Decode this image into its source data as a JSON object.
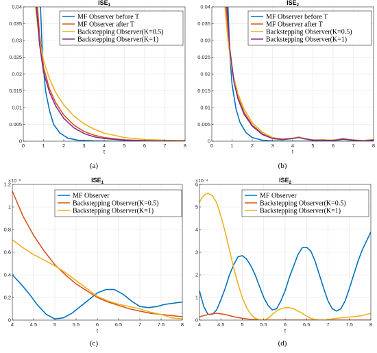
{
  "chart_data": [
    {
      "type": "line",
      "title": "ISE",
      "title_sub": "1",
      "xlabel": "t",
      "ylabel": "",
      "xlim": [
        0,
        8
      ],
      "ylim": [
        0,
        0.04
      ],
      "x_ticks": [
        0,
        1,
        2,
        3,
        4,
        5,
        6,
        7,
        8
      ],
      "x_tick_labels": [
        "0",
        "1",
        "2",
        "3",
        "4",
        "5",
        "6",
        "7",
        "8"
      ],
      "y_ticks": [
        0,
        0.005,
        0.01,
        0.015,
        0.02,
        0.025,
        0.03,
        0.035,
        0.04
      ],
      "y_tick_labels": [
        "0",
        "0.005",
        "0.01",
        "0.015",
        "0.02",
        "0.025",
        "0.03",
        "0.035",
        "0.04"
      ],
      "y_exponent": "",
      "grid": true,
      "legend_position": "top-right",
      "caption": "(a)",
      "series": [
        {
          "name": "MF Observer before T",
          "color": "#0072BD",
          "x": [
            0.85,
            0.95,
            1.1,
            1.3,
            1.5,
            1.8,
            2.2,
            2.7,
            3.5,
            4.5,
            8
          ],
          "y": [
            0.04,
            0.025,
            0.015,
            0.009,
            0.005,
            0.0025,
            0.0009,
            0.0003,
            0.0001,
            0,
            0
          ]
        },
        {
          "name": "MF Observer after T",
          "color": "#D95319",
          "x": [
            0.7,
            0.8,
            1.0,
            1.3,
            1.6,
            2.0,
            2.5,
            3.0,
            3.5,
            4.0,
            5.0,
            6.0,
            8.0
          ],
          "y": [
            0.04,
            0.032,
            0.022,
            0.0155,
            0.0115,
            0.0078,
            0.0048,
            0.0029,
            0.0018,
            0.0011,
            0.0004,
            0.0002,
            0.0001
          ]
        },
        {
          "name": "Backstepping Observer(K=0.5)",
          "color": "#EDB120",
          "x": [
            0.6,
            0.8,
            1.0,
            1.3,
            1.6,
            2.0,
            2.5,
            3.0,
            3.5,
            4.0,
            5.0,
            6.0,
            7.0,
            8.0
          ],
          "y": [
            0.04,
            0.03,
            0.024,
            0.0185,
            0.0145,
            0.0108,
            0.0075,
            0.0052,
            0.0036,
            0.0024,
            0.0011,
            0.0005,
            0.0003,
            0.0002
          ]
        },
        {
          "name": "Backstepping Observer(K=1)",
          "color": "#7E2F8E",
          "x": [
            0.65,
            0.8,
            1.0,
            1.3,
            1.6,
            2.0,
            2.5,
            3.0,
            3.5,
            4.0,
            5.0,
            6.0,
            8.0
          ],
          "y": [
            0.04,
            0.029,
            0.0205,
            0.0145,
            0.0105,
            0.0068,
            0.004,
            0.0023,
            0.0013,
            0.0008,
            0.0003,
            0.0001,
            5e-05
          ]
        }
      ]
    },
    {
      "type": "line",
      "title": "ISE",
      "title_sub": "2",
      "xlabel": "t",
      "ylabel": "",
      "xlim": [
        0,
        8
      ],
      "ylim": [
        0,
        0.04
      ],
      "x_ticks": [
        0,
        1,
        2,
        3,
        4,
        5,
        6,
        7,
        8
      ],
      "x_tick_labels": [
        "0",
        "1",
        "2",
        "3",
        "4",
        "5",
        "6",
        "7",
        "8"
      ],
      "y_ticks": [
        0,
        0.005,
        0.01,
        0.015,
        0.02,
        0.025,
        0.03,
        0.035,
        0.04
      ],
      "y_tick_labels": [
        "0",
        "0.005",
        "0.01",
        "0.015",
        "0.02",
        "0.025",
        "0.03",
        "0.035",
        "0.04"
      ],
      "y_exponent": "",
      "grid": true,
      "legend_position": "top-right",
      "caption": "(b)",
      "series": [
        {
          "name": "MF Observer before T",
          "color": "#0072BD",
          "x": [
            0.8,
            0.9,
            1.0,
            1.2,
            1.4,
            1.7,
            2.0,
            2.5,
            3.0,
            4.0,
            8.0
          ],
          "y": [
            0.04,
            0.025,
            0.017,
            0.0095,
            0.0055,
            0.0025,
            0.0011,
            0.0003,
            0.0001,
            0,
            0
          ]
        },
        {
          "name": "MF Observer after T",
          "color": "#D95319",
          "x": [
            0.7,
            0.9,
            1.1,
            1.3,
            1.6,
            2.0,
            2.5,
            3.0,
            3.5,
            4.0,
            4.3,
            4.6,
            5.0,
            5.5,
            6.0,
            6.5,
            7.0,
            7.5,
            8.0
          ],
          "y": [
            0.04,
            0.026,
            0.018,
            0.013,
            0.0085,
            0.0048,
            0.0022,
            0.0008,
            0.0005,
            0.0008,
            0.0012,
            0.0007,
            0.0003,
            0.0004,
            0.0003,
            0.0008,
            0.0003,
            0.0002,
            0.0005
          ]
        },
        {
          "name": "Backstepping Observer(K=0.5)",
          "color": "#EDB120",
          "x": [
            0.65,
            0.8,
            1.0,
            1.3,
            1.6,
            2.0,
            2.5,
            3.0,
            3.5,
            4.0,
            4.3,
            4.6,
            5.0,
            5.5,
            6.0,
            6.5,
            7.0,
            7.5,
            8.0
          ],
          "y": [
            0.04,
            0.03,
            0.021,
            0.014,
            0.0095,
            0.0055,
            0.0027,
            0.0011,
            0.0007,
            0.0009,
            0.0013,
            0.0008,
            0.0004,
            0.0004,
            0.0003,
            0.0007,
            0.0004,
            0.0002,
            0.0004
          ]
        },
        {
          "name": "Backstepping Observer(K=1)",
          "color": "#7E2F8E",
          "x": [
            0.75,
            0.9,
            1.1,
            1.3,
            1.6,
            2.0,
            2.5,
            3.0,
            3.5,
            4.0,
            4.3,
            4.6,
            5.0,
            5.5,
            6.0,
            6.5,
            7.0,
            7.5,
            8.0
          ],
          "y": [
            0.04,
            0.027,
            0.0175,
            0.0125,
            0.008,
            0.0045,
            0.002,
            0.0008,
            0.0005,
            0.0008,
            0.0011,
            0.0007,
            0.0003,
            0.0003,
            0.0002,
            0.0006,
            0.0003,
            0.0001,
            0.0003
          ]
        }
      ]
    },
    {
      "type": "line",
      "title": "ISE",
      "title_sub": "1",
      "xlabel": "t",
      "ylabel": "",
      "xlim": [
        4,
        8
      ],
      "ylim": [
        0,
        0.0012
      ],
      "x_ticks": [
        4,
        4.5,
        5,
        5.5,
        6,
        6.5,
        7,
        7.5,
        8
      ],
      "x_tick_labels": [
        "4",
        "4.5",
        "5",
        "5.5",
        "6",
        "6.5",
        "7",
        "7.5",
        "8"
      ],
      "y_ticks": [
        0,
        0.0002,
        0.0004,
        0.0006,
        0.0008,
        0.001,
        0.0012
      ],
      "y_tick_labels": [
        "0",
        "0.2",
        "0.4",
        "0.6",
        "0.8",
        "1",
        "1.2"
      ],
      "y_exponent": "×10⁻³",
      "grid": true,
      "legend_position": "top-right",
      "caption": "(c)",
      "series": [
        {
          "name": "MF Observer",
          "color": "#0072BD",
          "x": [
            4.0,
            4.2,
            4.4,
            4.6,
            4.8,
            5.0,
            5.2,
            5.4,
            5.6,
            5.8,
            6.0,
            6.2,
            6.4,
            6.6,
            6.8,
            7.0,
            7.2,
            7.4,
            7.6,
            7.8,
            8.0
          ],
          "y": [
            0.0004,
            0.00032,
            0.00023,
            0.00013,
            5e-05,
            1e-05,
            2e-05,
            6e-05,
            0.00012,
            0.00018,
            0.00024,
            0.00027,
            0.00027,
            0.00023,
            0.00017,
            0.00012,
            0.00011,
            0.00012,
            0.00014,
            0.00015,
            0.00016
          ]
        },
        {
          "name": "Backstepping Observer(K=0.5)",
          "color": "#D95319",
          "x": [
            4.0,
            4.25,
            4.5,
            4.75,
            5.0,
            5.25,
            5.5,
            5.75,
            6.0,
            6.25,
            6.5,
            6.75,
            7.0,
            7.25,
            7.5,
            7.75,
            8.0
          ],
          "y": [
            0.00114,
            0.00092,
            0.00075,
            0.00061,
            0.00049,
            0.0004,
            0.00032,
            0.00026,
            0.0002,
            0.00016,
            0.00013,
            0.0001,
            8e-05,
            6e-05,
            5e-05,
            4e-05,
            3e-05
          ]
        },
        {
          "name": "Backstepping Observer(K=1)",
          "color": "#EDB120",
          "x": [
            4.0,
            4.25,
            4.5,
            4.75,
            5.0,
            5.25,
            5.5,
            5.75,
            6.0,
            6.25,
            6.5,
            6.75,
            7.0,
            7.25,
            7.5,
            7.75,
            8.0
          ],
          "y": [
            0.00071,
            0.00064,
            0.00058,
            0.00053,
            0.00048,
            0.00042,
            0.00035,
            0.00028,
            0.00021,
            0.00017,
            0.00014,
            0.00012,
            0.0001,
            7e-05,
            5e-05,
            2e-05,
            1e-05
          ]
        }
      ]
    },
    {
      "type": "line",
      "title": "ISE",
      "title_sub": "2",
      "xlabel": "t",
      "ylabel": "",
      "xlim": [
        4,
        8
      ],
      "ylim": [
        0,
        0.0006
      ],
      "x_ticks": [
        4,
        4.5,
        5,
        5.5,
        6,
        6.5,
        7,
        7.5,
        8
      ],
      "x_tick_labels": [
        "4",
        "4.5",
        "5",
        "5.5",
        "6",
        "6.5",
        "7",
        "7.5",
        "8"
      ],
      "y_ticks": [
        0,
        0.0001,
        0.0002,
        0.0003,
        0.0004,
        0.0005,
        0.0006
      ],
      "y_tick_labels": [
        "0",
        "1",
        "2",
        "3",
        "4",
        "5",
        "6"
      ],
      "y_exponent": "×10⁻⁴",
      "grid": true,
      "legend_position": "top-right",
      "caption": "(d)",
      "series": [
        {
          "name": "MF Observer",
          "color": "#0072BD",
          "x": [
            4.0,
            4.1,
            4.2,
            4.3,
            4.4,
            4.5,
            4.6,
            4.7,
            4.8,
            4.9,
            5.0,
            5.1,
            5.2,
            5.3,
            5.4,
            5.5,
            5.6,
            5.7,
            5.8,
            5.9,
            6.0,
            6.1,
            6.2,
            6.3,
            6.4,
            6.5,
            6.6,
            6.7,
            6.8,
            6.9,
            7.0,
            7.1,
            7.2,
            7.3,
            7.4,
            7.5,
            7.6,
            7.7,
            7.8,
            7.9,
            8.0
          ],
          "y": [
            0.00013,
            6e-05,
            2.5e-05,
            2.5e-05,
            4.5e-05,
            9e-05,
            0.00014,
            0.0002,
            0.000245,
            0.00028,
            0.000285,
            0.00027,
            0.00024,
            0.0002,
            0.00015,
            0.0001,
            6.5e-05,
            4.5e-05,
            5e-05,
            8.5e-05,
            0.00013,
            0.00019,
            0.00024,
            0.00029,
            0.00032,
            0.000322,
            0.000305,
            0.00026,
            0.0002,
            0.00014,
            8.5e-05,
            5e-05,
            4e-05,
            5e-05,
            8.5e-05,
            0.00014,
            0.0002,
            0.00026,
            0.00031,
            0.00035,
            0.00039
          ]
        },
        {
          "name": "Backstepping Observer(K=0.5)",
          "color": "#D95319",
          "x": [
            4.0,
            4.2,
            4.4,
            4.6,
            4.8,
            5.0,
            5.2,
            5.4,
            5.6,
            5.8,
            6.0,
            6.5,
            7.0,
            7.5,
            8.0
          ],
          "y": [
            1.5e-05,
            2.5e-05,
            3e-05,
            2.5e-05,
            1.5e-05,
            8e-06,
            3e-06,
            1e-06,
            0,
            0,
            0,
            0,
            0,
            0,
            0
          ]
        },
        {
          "name": "Backstepping Observer(K=1)",
          "color": "#EDB120",
          "x": [
            4.0,
            4.05,
            4.1,
            4.15,
            4.2,
            4.3,
            4.4,
            4.5,
            4.6,
            4.7,
            4.8,
            4.9,
            5.0,
            5.1,
            5.2,
            5.3,
            5.4,
            5.5,
            5.6,
            5.7,
            5.8,
            5.9,
            6.0,
            6.1,
            6.2,
            6.3,
            6.4,
            6.5,
            6.6,
            6.7,
            6.8,
            6.9,
            7.0,
            7.2,
            7.4,
            7.6,
            7.8,
            8.0
          ],
          "y": [
            0.00052,
            0.00054,
            0.00055,
            0.000558,
            0.00056,
            0.00055,
            0.00052,
            0.00046,
            0.00039,
            0.00031,
            0.00023,
            0.00016,
            0.0001,
            5.5e-05,
            2.5e-05,
            8e-06,
            2e-06,
            0,
            8e-06,
            2.5e-05,
            4e-05,
            5e-05,
            5.5e-05,
            5.5e-05,
            5e-05,
            4e-05,
            3e-05,
            1.8e-05,
            8e-06,
            3e-06,
            0,
            0,
            2e-06,
            8e-06,
            1.2e-05,
            1.5e-05,
            2e-05,
            3e-05
          ]
        }
      ]
    }
  ]
}
